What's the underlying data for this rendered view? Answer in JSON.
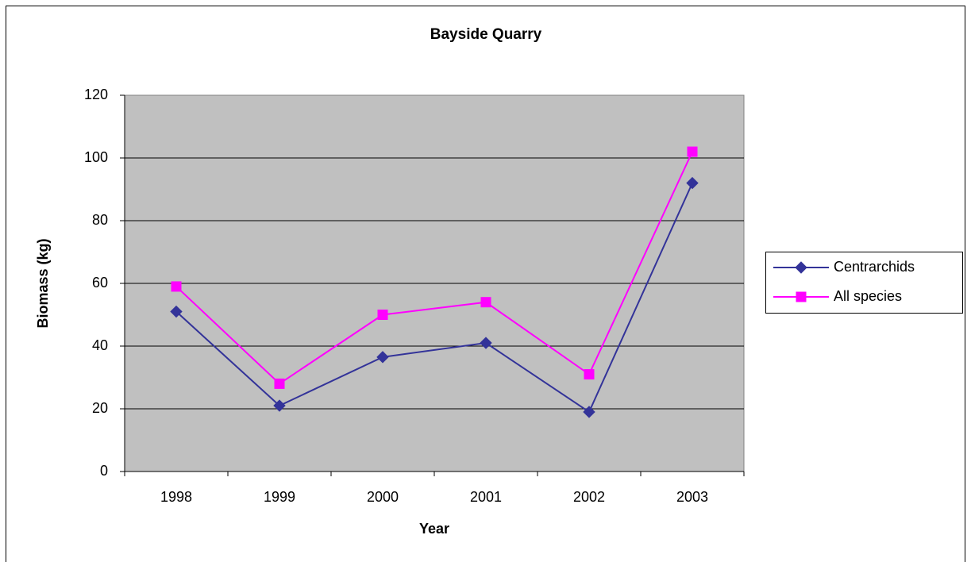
{
  "chart_data": {
    "type": "line",
    "title": "Bayside Quarry",
    "x_label": "Year",
    "y_label": "Biomass (kg)",
    "categories": [
      "1998",
      "1999",
      "2000",
      "2001",
      "2002",
      "2003"
    ],
    "series": [
      {
        "name": "Centrarchids",
        "color": "#333399",
        "marker": "diamond",
        "values": [
          51,
          21,
          36.5,
          41,
          19,
          92
        ]
      },
      {
        "name": "All species",
        "color": "#ff00ff",
        "marker": "square",
        "values": [
          59,
          28,
          50,
          54,
          31,
          102
        ]
      }
    ],
    "ylim": [
      0,
      120
    ],
    "yticks": [
      0,
      20,
      40,
      60,
      80,
      100,
      120
    ],
    "grid": true,
    "legend": "right"
  }
}
